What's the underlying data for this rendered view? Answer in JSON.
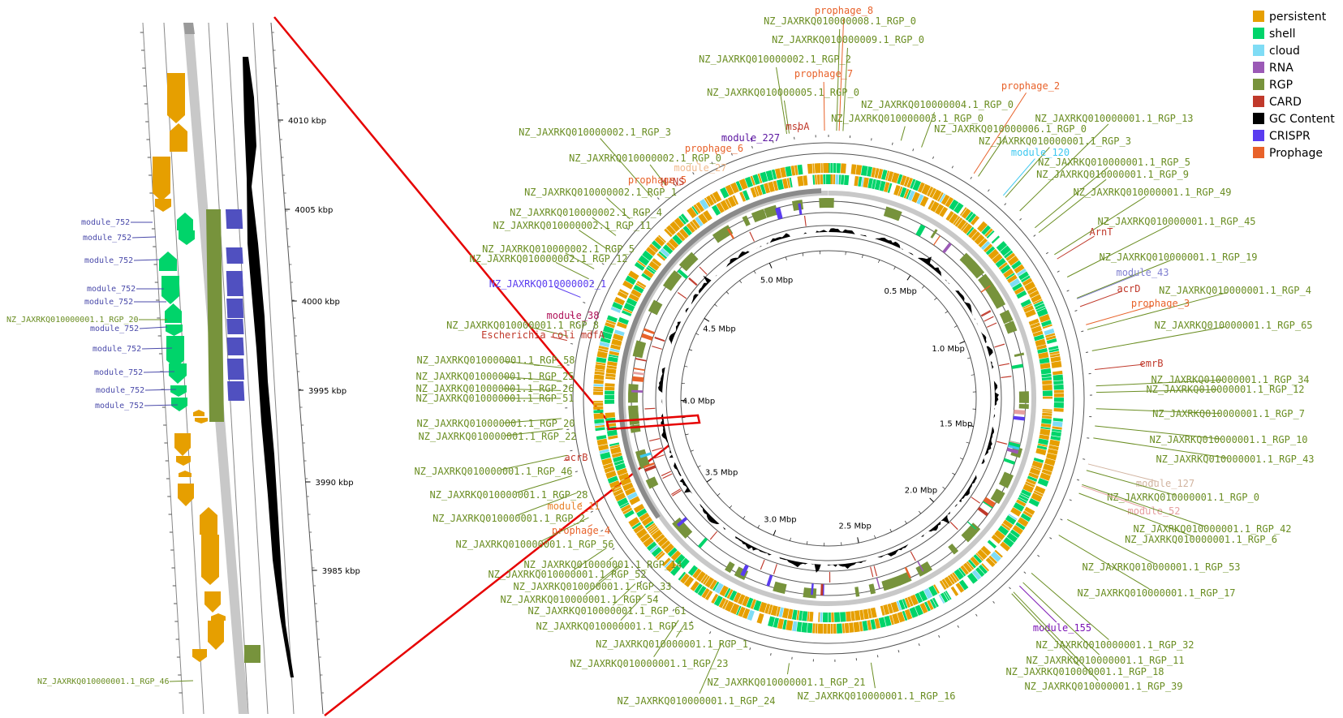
{
  "colors": {
    "persistent": "#e69f00",
    "shell": "#00d46a",
    "cloud": "#7fdcf5",
    "rna": "#9b59b6",
    "rgp": "#77933c",
    "card": "#c0392b",
    "gc": "#000000",
    "crispr": "#5a3cf0",
    "prophage": "#e8622a",
    "module_blue": "#4a4aaa",
    "rgp_text": "#6b8e23",
    "zoom_line": "#e60000"
  },
  "legend": [
    {
      "key": "persistent",
      "label": "persistent"
    },
    {
      "key": "shell",
      "label": "shell"
    },
    {
      "key": "cloud",
      "label": "cloud"
    },
    {
      "key": "rna",
      "label": "RNA"
    },
    {
      "key": "rgp",
      "label": "RGP"
    },
    {
      "key": "card",
      "label": "CARD"
    },
    {
      "key": "gc",
      "label": "GC Content"
    },
    {
      "key": "crispr",
      "label": "CRISPR"
    },
    {
      "key": "prophage",
      "label": "Prophage"
    }
  ],
  "inner_ticks": [
    "0.5 Mbp",
    "1.0 Mbp",
    "1.5 Mbp",
    "2.0 Mbp",
    "2.5 Mbp",
    "3.0 Mbp",
    "3.5 Mbp",
    "4.0 Mbp",
    "4.5 Mbp",
    "5.0 Mbp"
  ],
  "zoom_ticks": [
    "4010 kbp",
    "4005 kbp",
    "4000 kbp",
    "3995 kbp",
    "3990 kbp",
    "3985 kbp"
  ],
  "zoom_labels": [
    {
      "text": "module_752",
      "color": "module_blue"
    },
    {
      "text": "module_752",
      "color": "module_blue"
    },
    {
      "text": "module_752",
      "color": "module_blue"
    },
    {
      "text": "module_752",
      "color": "module_blue"
    },
    {
      "text": "module_752",
      "color": "module_blue"
    },
    {
      "text": "NZ_JAXRKQ010000001.1_RGP_20",
      "color": "rgp_text"
    },
    {
      "text": "module_752",
      "color": "module_blue"
    },
    {
      "text": "module_752",
      "color": "module_blue"
    },
    {
      "text": "module_752",
      "color": "module_blue"
    },
    {
      "text": "module_752",
      "color": "module_blue"
    },
    {
      "text": "module_752",
      "color": "module_blue"
    },
    {
      "text": "NZ_JAXRKQ010000001.1_RGP_46",
      "color": "rgp_text"
    }
  ],
  "outer_labels": [
    {
      "text": "prophage_8",
      "color": "#e8622a"
    },
    {
      "text": "NZ_JAXRKQ010000008.1_RGP_0",
      "color": "rgp_text"
    },
    {
      "text": "NZ_JAXRKQ010000009.1_RGP_0",
      "color": "rgp_text"
    },
    {
      "text": "NZ_JAXRKQ010000002.1_RGP_2",
      "color": "rgp_text"
    },
    {
      "text": "prophage_7",
      "color": "#e8622a"
    },
    {
      "text": "NZ_JAXRKQ010000005.1_RGP_0",
      "color": "rgp_text"
    },
    {
      "text": "prophage_2",
      "color": "#e8622a"
    },
    {
      "text": "NZ_JAXRKQ010000004.1_RGP_0",
      "color": "rgp_text"
    },
    {
      "text": "msbA",
      "color": "#c0392b"
    },
    {
      "text": "NZ_JAXRKQ010000003.1_RGP_0",
      "color": "rgp_text"
    },
    {
      "text": "NZ_JAXRKQ010000001.1_RGP_13",
      "color": "rgp_text"
    },
    {
      "text": "NZ_JAXRKQ010000006.1_RGP_0",
      "color": "rgp_text"
    },
    {
      "text": "NZ_JAXRKQ010000002.1_RGP_3",
      "color": "rgp_text"
    },
    {
      "text": "module_227",
      "color": "#5a14a0"
    },
    {
      "text": "NZ_JAXRKQ010000001.1_RGP_3",
      "color": "rgp_text"
    },
    {
      "text": "prophage_6",
      "color": "#e8622a"
    },
    {
      "text": "module_120",
      "color": "#3cc8f0"
    },
    {
      "text": "NZ_JAXRKQ010000002.1_RGP_0",
      "color": "rgp_text"
    },
    {
      "text": "module_27",
      "color": "#f0b98c"
    },
    {
      "text": "NZ_JAXRKQ010000001.1_RGP_5",
      "color": "rgp_text"
    },
    {
      "text": "NZ_JAXRKQ010000001.1_RGP_9",
      "color": "rgp_text"
    },
    {
      "text": "prophage_5",
      "color": "#e8622a"
    },
    {
      "text": "H-NS",
      "color": "#c0392b"
    },
    {
      "text": "NZ_JAXRKQ010000002.1_RGP_1",
      "color": "rgp_text"
    },
    {
      "text": "NZ_JAXRKQ010000001.1_RGP_49",
      "color": "rgp_text"
    },
    {
      "text": "NZ_JAXRKQ010000002.1_RGP_4",
      "color": "rgp_text"
    },
    {
      "text": "NZ_JAXRKQ010000002.1_RGP_11",
      "color": "rgp_text"
    },
    {
      "text": "NZ_JAXRKQ010000001.1_RGP_45",
      "color": "rgp_text"
    },
    {
      "text": "ArnT",
      "color": "#c0392b"
    },
    {
      "text": "NZ_JAXRKQ010000002.1_RGP_5",
      "color": "rgp_text"
    },
    {
      "text": "NZ_JAXRKQ010000002.1_RGP_12",
      "color": "rgp_text"
    },
    {
      "text": "NZ_JAXRKQ010000001.1_RGP_19",
      "color": "rgp_text"
    },
    {
      "text": "module_43",
      "color": "#8080d0"
    },
    {
      "text": "NZ_JAXRKQ010000002_1",
      "color": "#5a3cf0"
    },
    {
      "text": "acrD",
      "color": "#c0392b"
    },
    {
      "text": "NZ_JAXRKQ010000001.1_RGP_4",
      "color": "rgp_text"
    },
    {
      "text": "prophage_3",
      "color": "#e8622a"
    },
    {
      "text": "module_38",
      "color": "#b0145a"
    },
    {
      "text": "NZ_JAXRKQ010000001.1_RGP_65",
      "color": "rgp_text"
    },
    {
      "text": "NZ_JAXRKQ010000001.1_RGP_8",
      "color": "rgp_text"
    },
    {
      "text": "Escherichia coli mdfA",
      "color": "#c0392b"
    },
    {
      "text": "emrB",
      "color": "#c0392b"
    },
    {
      "text": "NZ_JAXRKQ010000001.1_RGP_58",
      "color": "rgp_text"
    },
    {
      "text": "NZ_JAXRKQ010000001.1_RGP_34",
      "color": "rgp_text"
    },
    {
      "text": "NZ_JAXRKQ010000001.1_RGP_25",
      "color": "rgp_text"
    },
    {
      "text": "NZ_JAXRKQ010000001.1_RGP_12",
      "color": "rgp_text"
    },
    {
      "text": "NZ_JAXRKQ010000001.1_RGP_26",
      "color": "rgp_text"
    },
    {
      "text": "NZ_JAXRKQ010000001.1_RGP_51",
      "color": "rgp_text"
    },
    {
      "text": "NZ_JAXRKQ010000001.1_RGP_7",
      "color": "rgp_text"
    },
    {
      "text": "NZ_JAXRKQ010000001.1_RGP_20",
      "color": "rgp_text"
    },
    {
      "text": "NZ_JAXRKQ010000001.1_RGP_10",
      "color": "rgp_text"
    },
    {
      "text": "NZ_JAXRKQ010000001.1_RGP_22",
      "color": "rgp_text"
    },
    {
      "text": "acrB",
      "color": "#c0392b"
    },
    {
      "text": "NZ_JAXRKQ010000001.1_RGP_43",
      "color": "rgp_text"
    },
    {
      "text": "NZ_JAXRKQ010000001.1_RGP_46",
      "color": "rgp_text"
    },
    {
      "text": "module_127",
      "color": "#d2b4a0"
    },
    {
      "text": "NZ_JAXRKQ010000001.1_RGP_0",
      "color": "rgp_text"
    },
    {
      "text": "NZ_JAXRKQ010000001.1_RGP_28",
      "color": "rgp_text"
    },
    {
      "text": "module_11",
      "color": "#e8822a"
    },
    {
      "text": "module_52",
      "color": "#e6a0a0"
    },
    {
      "text": "NZ_JAXRKQ010000001.1_RGP_2",
      "color": "rgp_text"
    },
    {
      "text": "prophage_4",
      "color": "#e8622a"
    },
    {
      "text": "NZ_JAXRKQ010000001.1_RGP_42",
      "color": "rgp_text"
    },
    {
      "text": "NZ_JAXRKQ010000001.1_RGP_6",
      "color": "rgp_text"
    },
    {
      "text": "NZ_JAXRKQ010000001.1_RGP_56",
      "color": "rgp_text"
    },
    {
      "text": "NZ_JAXRKQ010000001.1_RGP_14",
      "color": "rgp_text"
    },
    {
      "text": "NZ_JAXRKQ010000001.1_RGP_52",
      "color": "rgp_text"
    },
    {
      "text": "NZ_JAXRKQ010000001.1_RGP_53",
      "color": "rgp_text"
    },
    {
      "text": "NZ_JAXRKQ010000001.1_RGP_33",
      "color": "rgp_text"
    },
    {
      "text": "NZ_JAXRKQ010000001.1_RGP_54",
      "color": "rgp_text"
    },
    {
      "text": "NZ_JAXRKQ010000001.1_RGP_17",
      "color": "rgp_text"
    },
    {
      "text": "NZ_JAXRKQ010000001.1_RGP_61",
      "color": "rgp_text"
    },
    {
      "text": "module_155",
      "color": "#7a14b4"
    },
    {
      "text": "NZ_JAXRKQ010000001.1_RGP_15",
      "color": "rgp_text"
    },
    {
      "text": "NZ_JAXRKQ010000001.1_RGP_1",
      "color": "rgp_text"
    },
    {
      "text": "NZ_JAXRKQ010000001.1_RGP_32",
      "color": "rgp_text"
    },
    {
      "text": "NZ_JAXRKQ010000001.1_RGP_23",
      "color": "rgp_text"
    },
    {
      "text": "NZ_JAXRKQ010000001.1_RGP_11",
      "color": "rgp_text"
    },
    {
      "text": "NZ_JAXRKQ010000001.1_RGP_18",
      "color": "rgp_text"
    },
    {
      "text": "NZ_JAXRKQ010000001.1_RGP_21",
      "color": "rgp_text"
    },
    {
      "text": "NZ_JAXRKQ010000001.1_RGP_39",
      "color": "rgp_text"
    },
    {
      "text": "NZ_JAXRKQ010000001.1_RGP_16",
      "color": "rgp_text"
    },
    {
      "text": "NZ_JAXRKQ010000001.1_RGP_24",
      "color": "rgp_text"
    }
  ]
}
